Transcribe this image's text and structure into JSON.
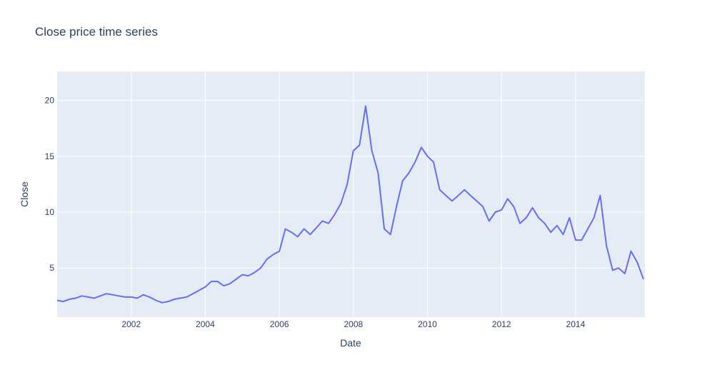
{
  "chart_data": {
    "type": "line",
    "title": "Close price time series",
    "xlabel": "Date",
    "ylabel": "Close",
    "xlim": [
      "2000-01-01",
      "2015-11-15"
    ],
    "ylim": [
      0.6,
      22.6
    ],
    "x_ticks": [
      "2002",
      "2004",
      "2006",
      "2008",
      "2010",
      "2012",
      "2014"
    ],
    "y_ticks": [
      5,
      10,
      15,
      20
    ],
    "grid": true,
    "colors": {
      "plot_bg": "#e5ecf6",
      "grid": "#ffffff",
      "line": "#636efa",
      "text": "#2a3f5f"
    },
    "series": [
      {
        "x": [
          "2000-01-01",
          "2000-03-01",
          "2000-05-01",
          "2000-07-01",
          "2000-09-01",
          "2000-11-01",
          "2001-01-01",
          "2001-03-01",
          "2001-05-01",
          "2001-07-01",
          "2001-09-01",
          "2001-11-01",
          "2002-01-01",
          "2002-03-01",
          "2002-05-01",
          "2002-07-01",
          "2002-09-01",
          "2002-11-01",
          "2003-01-01",
          "2003-03-01",
          "2003-05-01",
          "2003-07-01",
          "2003-09-01",
          "2003-11-01",
          "2004-01-01",
          "2004-03-01",
          "2004-05-01",
          "2004-07-01",
          "2004-09-01",
          "2004-11-01",
          "2005-01-01",
          "2005-03-01",
          "2005-05-01",
          "2005-07-01",
          "2005-09-01",
          "2005-11-01",
          "2006-01-01",
          "2006-03-01",
          "2006-05-01",
          "2006-07-01",
          "2006-09-01",
          "2006-11-01",
          "2007-01-01",
          "2007-03-01",
          "2007-05-01",
          "2007-07-01",
          "2007-09-01",
          "2007-11-01",
          "2008-01-01",
          "2008-03-01",
          "2008-05-01",
          "2008-07-01",
          "2008-09-01",
          "2008-11-01",
          "2009-01-01",
          "2009-03-01",
          "2009-05-01",
          "2009-07-01",
          "2009-09-01",
          "2009-11-01",
          "2010-01-01",
          "2010-03-01",
          "2010-05-01",
          "2010-07-01",
          "2010-09-01",
          "2010-11-01",
          "2011-01-01",
          "2011-03-01",
          "2011-05-01",
          "2011-07-01",
          "2011-09-01",
          "2011-11-01",
          "2012-01-01",
          "2012-03-01",
          "2012-05-01",
          "2012-07-01",
          "2012-09-01",
          "2012-11-01",
          "2013-01-01",
          "2013-03-01",
          "2013-05-01",
          "2013-07-01",
          "2013-09-01",
          "2013-11-01",
          "2014-01-01",
          "2014-03-01",
          "2014-05-01",
          "2014-07-01",
          "2014-09-01",
          "2014-11-01",
          "2015-01-01",
          "2015-03-01",
          "2015-05-01",
          "2015-07-01",
          "2015-09-01",
          "2015-11-01"
        ],
        "y": [
          2.1,
          2.0,
          2.2,
          2.3,
          2.5,
          2.4,
          2.3,
          2.5,
          2.7,
          2.6,
          2.5,
          2.4,
          2.4,
          2.3,
          2.6,
          2.4,
          2.1,
          1.9,
          2.0,
          2.2,
          2.3,
          2.4,
          2.7,
          3.0,
          3.3,
          3.8,
          3.8,
          3.4,
          3.6,
          4.0,
          4.4,
          4.3,
          4.6,
          5.0,
          5.8,
          6.2,
          6.5,
          8.5,
          8.2,
          7.8,
          8.5,
          8.0,
          8.6,
          9.2,
          9.0,
          9.8,
          10.8,
          12.5,
          15.5,
          16.0,
          19.5,
          15.5,
          13.5,
          8.5,
          8.0,
          10.5,
          12.8,
          13.5,
          14.5,
          15.8,
          15.0,
          14.5,
          12.0,
          11.5,
          11.0,
          11.5,
          12.0,
          11.5,
          11.0,
          10.5,
          9.2,
          10.0,
          10.2,
          11.2,
          10.5,
          9.0,
          9.5,
          10.4,
          9.5,
          9.0,
          8.2,
          8.8,
          8.0,
          9.5,
          7.5,
          7.5,
          8.5,
          9.5,
          11.5,
          7.0,
          4.8,
          5.0,
          4.5,
          6.5,
          5.5,
          4.0
        ]
      }
    ]
  }
}
